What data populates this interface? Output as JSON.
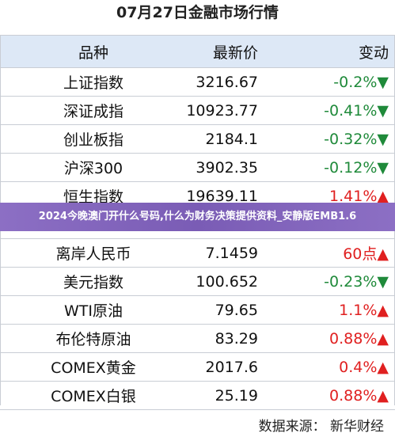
{
  "title": "07月27日金融市场行情",
  "table": {
    "header": [
      "品种",
      "最新价",
      "变动"
    ],
    "rows": [
      [
        "上证指数",
        "3216.67",
        "-0.2%▼"
      ],
      [
        "深证成指",
        "10923.77",
        "-0.41%▼"
      ],
      [
        "创业板指",
        "2184.1",
        "-0.32%▼"
      ],
      [
        "沪深300",
        "3902.35",
        "-0.12%▼"
      ],
      [
        "恒生指数",
        "19639.11",
        "1.41%▲"
      ],
      null,
      [
        "离岸人民币",
        "7.1459",
        "60点▲"
      ],
      [
        "美元指数",
        "100.652",
        "-0.23%▼"
      ],
      [
        "WTI原油",
        "79.65",
        "1.1%▲"
      ],
      [
        "布伦特原油",
        "83.29",
        "0.88%▲"
      ],
      [
        "COMEX黄金",
        "2017.6",
        "0.4%▲"
      ],
      [
        "COMEX白银",
        "25.19",
        "0.88%▲"
      ]
    ]
  },
  "banner": "2024今晚澳门开什么号码,什么为财务决策提供资料_安静版EMB1.6",
  "footer": "数据来源： 新华财经"
}
